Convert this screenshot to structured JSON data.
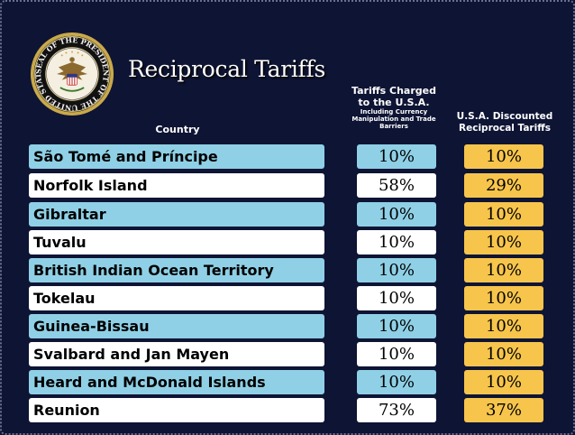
{
  "title": "Reciprocal Tariffs",
  "seal_text": "SEAL OF THE PRESIDENT OF THE UNITED STATES",
  "headers": {
    "country": "Country",
    "charged": "Tariffs Charged to the U.S.A.",
    "charged_sub": "Including Currency Manipulation and Trade Barriers",
    "discounted": "U.S.A. Discounted Reciprocal Tariffs"
  },
  "rows": [
    {
      "country": "São Tomé and Príncipe",
      "charged": "10%",
      "discounted": "10%"
    },
    {
      "country": "Norfolk Island",
      "charged": "58%",
      "discounted": "29%"
    },
    {
      "country": "Gibraltar",
      "charged": "10%",
      "discounted": "10%"
    },
    {
      "country": "Tuvalu",
      "charged": "10%",
      "discounted": "10%"
    },
    {
      "country": "British Indian Ocean Territory",
      "charged": "10%",
      "discounted": "10%"
    },
    {
      "country": "Tokelau",
      "charged": "10%",
      "discounted": "10%"
    },
    {
      "country": "Guinea-Bissau",
      "charged": "10%",
      "discounted": "10%"
    },
    {
      "country": "Svalbard and Jan Mayen",
      "charged": "10%",
      "discounted": "10%"
    },
    {
      "country": "Heard and McDonald Islands",
      "charged": "10%",
      "discounted": "10%"
    },
    {
      "country": "Reunion",
      "charged": "73%",
      "discounted": "37%"
    }
  ],
  "colors": {
    "background": "#0e1434",
    "row_blue": "#8fd0e6",
    "row_white": "#ffffff",
    "discount_yellow": "#f7c54c"
  }
}
